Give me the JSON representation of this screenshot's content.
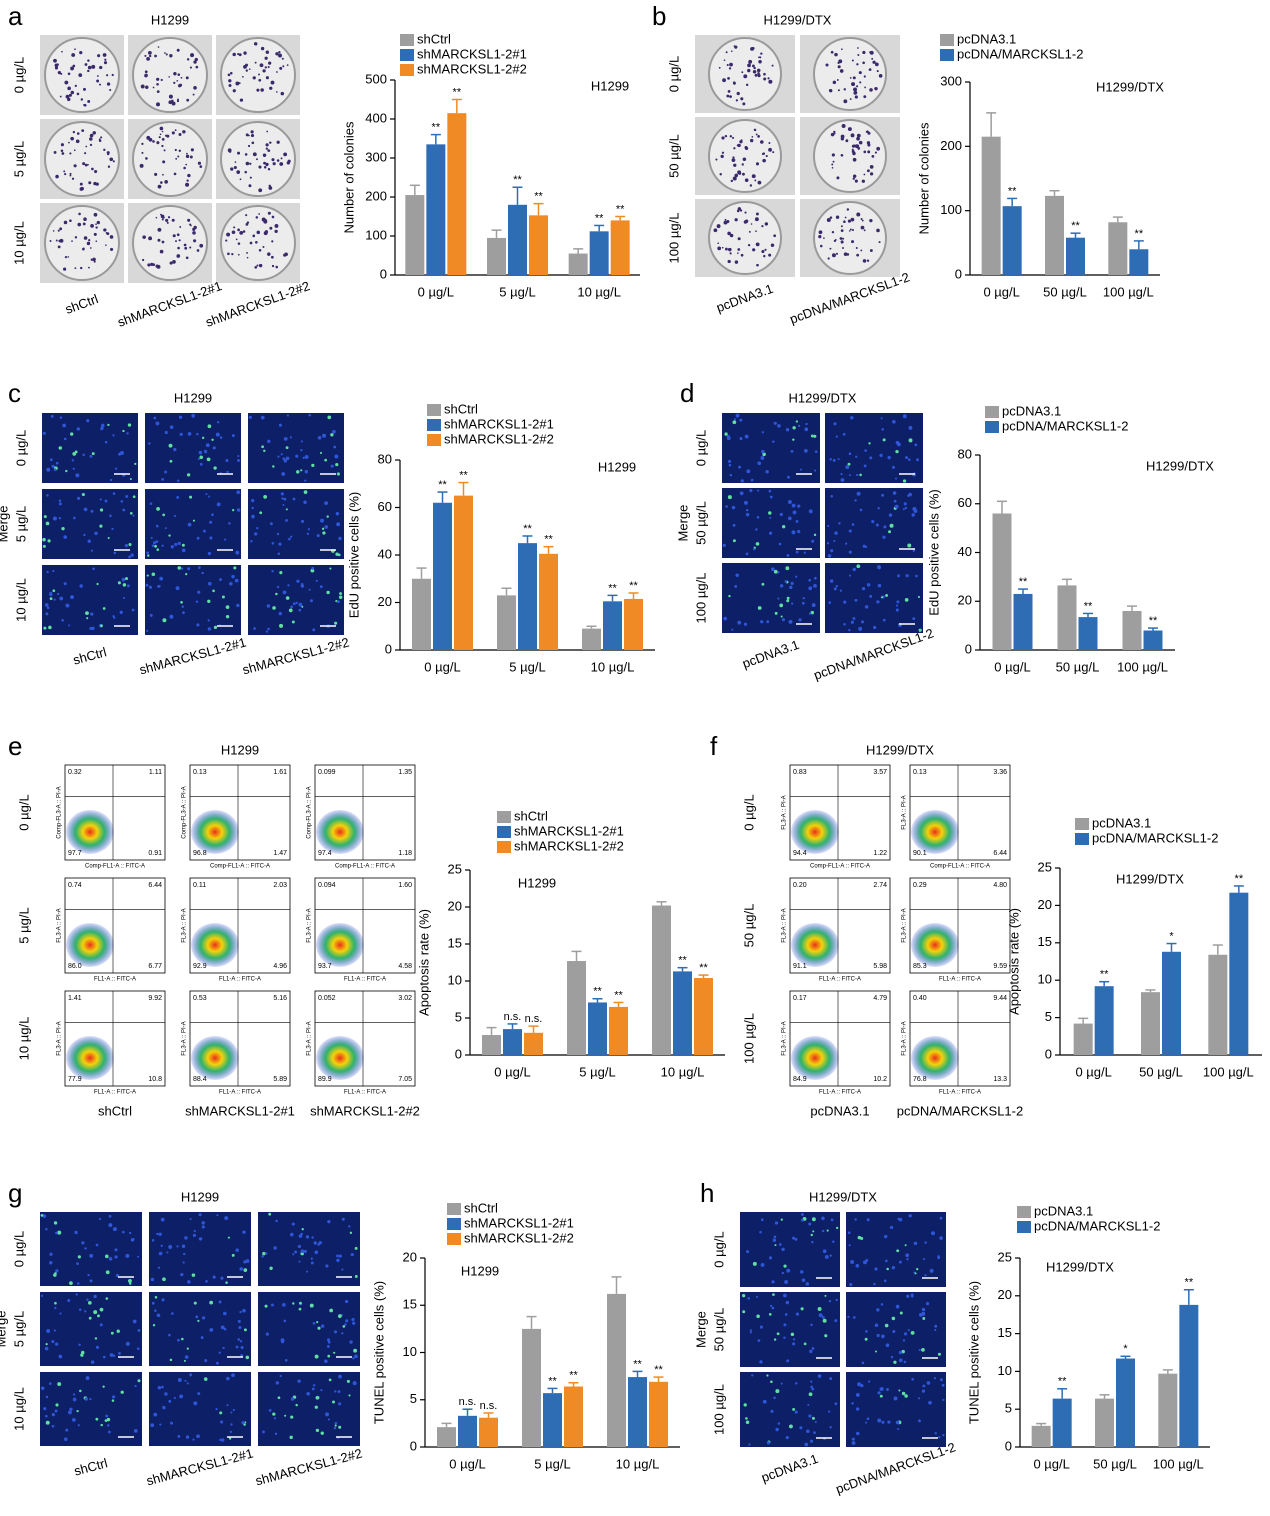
{
  "chart_data": [
    {
      "type": "bar",
      "note": "H1299",
      "ylabel": "Number of colonies",
      "categories": [
        "0 µg/L",
        "5 µg/L",
        "10 µg/L"
      ],
      "ylim": [
        0,
        500
      ],
      "yticks": [
        0,
        100,
        200,
        300,
        400,
        500
      ],
      "series": [
        {
          "name": "shCtrl",
          "color": "#9e9e9e",
          "values": [
            205,
            95,
            55
          ],
          "errors": [
            25,
            20,
            12
          ]
        },
        {
          "name": "shMARCKSL1-2#1",
          "color": "#2e6db4",
          "values": [
            335,
            180,
            112
          ],
          "errors": [
            25,
            45,
            15
          ],
          "labels": [
            "**",
            "**",
            "**"
          ]
        },
        {
          "name": "shMARCKSL1-2#2",
          "color": "#f08a24",
          "values": [
            415,
            153,
            140
          ],
          "errors": [
            35,
            30,
            10
          ],
          "labels": [
            "**",
            "**",
            "**"
          ]
        }
      ]
    },
    {
      "type": "bar",
      "note": "H1299/DTX",
      "ylabel": "Number of colonies",
      "categories": [
        "0 µg/L",
        "50 µg/L",
        "100 µg/L"
      ],
      "ylim": [
        0,
        300
      ],
      "yticks": [
        0,
        100,
        200,
        300
      ],
      "series": [
        {
          "name": "pcDNA3.1",
          "color": "#9e9e9e",
          "values": [
            215,
            123,
            82
          ],
          "errors": [
            37,
            8,
            8
          ]
        },
        {
          "name": "pcDNA/MARCKSL1-2",
          "color": "#2e6db4",
          "values": [
            107,
            58,
            40
          ],
          "errors": [
            12,
            7,
            13
          ],
          "labels": [
            "**",
            "**",
            "**"
          ]
        }
      ]
    },
    {
      "type": "bar",
      "note": "H1299",
      "ylabel": "EdU positive cells (%)",
      "categories": [
        "0 µg/L",
        "5 µg/L",
        "10 µg/L"
      ],
      "ylim": [
        0,
        80
      ],
      "yticks": [
        0,
        20,
        40,
        60,
        80
      ],
      "series": [
        {
          "name": "shCtrl",
          "color": "#9e9e9e",
          "values": [
            30,
            23,
            9
          ],
          "errors": [
            4.5,
            3,
            1
          ]
        },
        {
          "name": "shMARCKSL1-2#1",
          "color": "#2e6db4",
          "values": [
            62,
            45,
            20.5
          ],
          "errors": [
            4.5,
            3,
            2.5
          ],
          "labels": [
            "**",
            "**",
            "**"
          ]
        },
        {
          "name": "shMARCKSL1-2#2",
          "color": "#f08a24",
          "values": [
            65,
            40.5,
            21.5
          ],
          "errors": [
            5.5,
            3,
            2.5
          ],
          "labels": [
            "**",
            "**",
            "**"
          ]
        }
      ]
    },
    {
      "type": "bar",
      "note": "H1299/DTX",
      "ylabel": "EdU positive cells (%)",
      "categories": [
        "0 µg/L",
        "50 µg/L",
        "100 µg/L"
      ],
      "ylim": [
        0,
        80
      ],
      "yticks": [
        0,
        20,
        40,
        60,
        80
      ],
      "series": [
        {
          "name": "pcDNA3.1",
          "color": "#9e9e9e",
          "values": [
            56,
            26.5,
            16
          ],
          "errors": [
            5,
            2.5,
            2
          ]
        },
        {
          "name": "pcDNA/MARCKSL1-2",
          "color": "#2e6db4",
          "values": [
            23,
            13.5,
            8
          ],
          "errors": [
            2,
            1.5,
            1
          ],
          "labels": [
            "**",
            "**",
            "**"
          ]
        }
      ]
    },
    {
      "type": "bar",
      "note": "H1299",
      "ylabel": "Apoptosis rate (%)",
      "categories": [
        "0 µg/L",
        "5 µg/L",
        "10 µg/L"
      ],
      "ylim": [
        0,
        25
      ],
      "yticks": [
        0,
        5,
        10,
        15,
        20,
        25
      ],
      "series": [
        {
          "name": "shCtrl",
          "color": "#9e9e9e",
          "values": [
            2.7,
            12.7,
            20.2
          ],
          "errors": [
            1,
            1.3,
            0.5
          ]
        },
        {
          "name": "shMARCKSL1-2#1",
          "color": "#2e6db4",
          "values": [
            3.5,
            7.1,
            11.3
          ],
          "errors": [
            0.7,
            0.5,
            0.5
          ],
          "labels": [
            "n.s.",
            "**",
            "**"
          ]
        },
        {
          "name": "shMARCKSL1-2#2",
          "color": "#f08a24",
          "values": [
            3,
            6.5,
            10.4
          ],
          "errors": [
            0.9,
            0.6,
            0.4
          ],
          "labels": [
            "n.s.",
            "**",
            "**"
          ]
        }
      ]
    },
    {
      "type": "bar",
      "note": "H1299/DTX",
      "ylabel": "Apoptosis rate (%)",
      "categories": [
        "0 µg/L",
        "50 µg/L",
        "100 µg/L"
      ],
      "ylim": [
        0,
        25
      ],
      "yticks": [
        0,
        5,
        10,
        15,
        20,
        25
      ],
      "series": [
        {
          "name": "pcDNA3.1",
          "color": "#9e9e9e",
          "values": [
            4.2,
            8.4,
            13.4
          ],
          "errors": [
            0.7,
            0.3,
            1.3
          ]
        },
        {
          "name": "pcDNA/MARCKSL1-2",
          "color": "#2e6db4",
          "values": [
            9.2,
            13.8,
            21.7
          ],
          "errors": [
            0.6,
            1.1,
            0.9
          ],
          "labels": [
            "**",
            "*",
            "**"
          ]
        }
      ]
    },
    {
      "type": "bar",
      "note": "H1299",
      "ylabel": "TUNEL positive cells (%)",
      "categories": [
        "0 µg/L",
        "5 µg/L",
        "10 µg/L"
      ],
      "ylim": [
        0,
        20
      ],
      "yticks": [
        0,
        5,
        10,
        15,
        20
      ],
      "series": [
        {
          "name": "shCtrl",
          "color": "#9e9e9e",
          "values": [
            2.1,
            12.5,
            16.2
          ],
          "errors": [
            0.4,
            1.3,
            1.8
          ]
        },
        {
          "name": "shMARCKSL1-2#1",
          "color": "#2e6db4",
          "values": [
            3.3,
            5.7,
            7.4
          ],
          "errors": [
            0.7,
            0.5,
            0.6
          ],
          "labels": [
            "n.s.",
            "**",
            "**"
          ]
        },
        {
          "name": "shMARCKSL1-2#2",
          "color": "#f08a24",
          "values": [
            3.1,
            6.4,
            6.9
          ],
          "errors": [
            0.5,
            0.4,
            0.5
          ],
          "labels": [
            "n.s.",
            "**",
            "**"
          ]
        }
      ]
    },
    {
      "type": "bar",
      "note": "H1299/DTX",
      "ylabel": "TUNEL positive cells (%)",
      "categories": [
        "0 µg/L",
        "50 µg/L",
        "100 µg/L"
      ],
      "ylim": [
        0,
        25
      ],
      "yticks": [
        0,
        5,
        10,
        15,
        20,
        25
      ],
      "series": [
        {
          "name": "pcDNA3.1",
          "color": "#9e9e9e",
          "values": [
            2.8,
            6.4,
            9.7
          ],
          "errors": [
            0.3,
            0.5,
            0.5
          ]
        },
        {
          "name": "pcDNA/MARCKSL1-2",
          "color": "#2e6db4",
          "values": [
            6.4,
            11.7,
            18.8
          ],
          "errors": [
            1.3,
            0.3,
            2
          ],
          "labels": [
            "**",
            "*",
            "**"
          ]
        }
      ]
    }
  ],
  "image_panels": [
    {
      "letter": "a",
      "title": "H1299",
      "row_labels": [
        "0 µg/L",
        "5 µg/L",
        "10 µg/L"
      ],
      "col_labels": [
        "shCtrl",
        "shMARCKSL1-2#1",
        "shMARCKSL1-2#2"
      ]
    },
    {
      "letter": "b",
      "title": "H1299/DTX",
      "row_labels": [
        "0 µg/L",
        "50 µg/L",
        "100 µg/L"
      ],
      "col_labels": [
        "pcDNA3.1",
        "pcDNA/MARCKSL1-2"
      ]
    },
    {
      "letter": "c",
      "title": "H1299",
      "side_label": "Merge",
      "row_labels": [
        "0 µg/L",
        "5 µg/L",
        "10 µg/L"
      ],
      "col_labels": [
        "shCtrl",
        "shMARCKSL1-2#1",
        "shMARCKSL1-2#2"
      ]
    },
    {
      "letter": "d",
      "title": "H1299/DTX",
      "side_label": "Merge",
      "row_labels": [
        "0 µg/L",
        "50 µg/L",
        "100 µg/L"
      ],
      "col_labels": [
        "pcDNA3.1",
        "pcDNA/MARCKSL1-2"
      ]
    },
    {
      "letter": "e",
      "title": "H1299",
      "row_labels": [
        "0 µg/L",
        "5 µg/L",
        "10 µg/L"
      ],
      "col_labels": [
        "shCtrl",
        "shMARCKSL1-2#1",
        "shMARCKSL1-2#2"
      ],
      "axis_labels": [
        [
          "Comp-FL1-A :: FITC-A",
          "Comp-FL3-A :: PI-A"
        ],
        [
          "FL1-A :: FITC-A",
          "FL3-A :: PI-A"
        ],
        [
          "FL1-A :: FITC-A",
          "FL3-A :: PI-A"
        ]
      ],
      "quadrants": [
        [
          [
            "0.32",
            "1.11",
            "97.7",
            "0.91"
          ],
          [
            "0.13",
            "1.61",
            "96.8",
            "1.47"
          ],
          [
            "0.099",
            "1.35",
            "97.4",
            "1.18"
          ]
        ],
        [
          [
            "0.74",
            "6.44",
            "86.0",
            "6.77"
          ],
          [
            "0.11",
            "2.03",
            "92.9",
            "4.96"
          ],
          [
            "0.094",
            "1.60",
            "93.7",
            "4.58"
          ]
        ],
        [
          [
            "1.41",
            "9.92",
            "77.9",
            "10.8"
          ],
          [
            "0.53",
            "5.16",
            "88.4",
            "5.89"
          ],
          [
            "0.052",
            "3.02",
            "89.9",
            "7.05"
          ]
        ]
      ]
    },
    {
      "letter": "f",
      "title": "H1299/DTX",
      "row_labels": [
        "0 µg/L",
        "50 µg/L",
        "100 µg/L"
      ],
      "col_labels": [
        "pcDNA3.1",
        "pcDNA/MARCKSL1-2"
      ],
      "axis_labels": [
        [
          "Comp-FL1-A :: FITC-A",
          "FL3-A :: PI-A"
        ],
        [
          "FL1-A :: FITC-A",
          "FL3-A :: PI-A"
        ],
        [
          "FL1-A :: FITC-A",
          "FL3-A :: PI-A"
        ]
      ],
      "quadrants": [
        [
          [
            "0.83",
            "3.57",
            "94.4",
            "1.22"
          ],
          [
            "0.13",
            "3.36",
            "90.1",
            "6.44"
          ]
        ],
        [
          [
            "0.20",
            "2.74",
            "91.1",
            "5.98"
          ],
          [
            "0.29",
            "4.80",
            "85.3",
            "9.59"
          ]
        ],
        [
          [
            "0.17",
            "4.79",
            "84.9",
            "10.2"
          ],
          [
            "0.40",
            "9.44",
            "76.8",
            "13.3"
          ]
        ]
      ]
    },
    {
      "letter": "g",
      "title": "H1299",
      "side_label": "Merge",
      "row_labels": [
        "0 µg/L",
        "5 µg/L",
        "10 µg/L"
      ],
      "col_labels": [
        "shCtrl",
        "shMARCKSL1-2#1",
        "shMARCKSL1-2#2"
      ]
    },
    {
      "letter": "h",
      "title": "H1299/DTX",
      "side_label": "Merge",
      "row_labels": [
        "0 µg/L",
        "50 µg/L",
        "100 µg/L"
      ],
      "col_labels": [
        "pcDNA3.1",
        "pcDNA/MARCKSL1-2"
      ]
    }
  ]
}
